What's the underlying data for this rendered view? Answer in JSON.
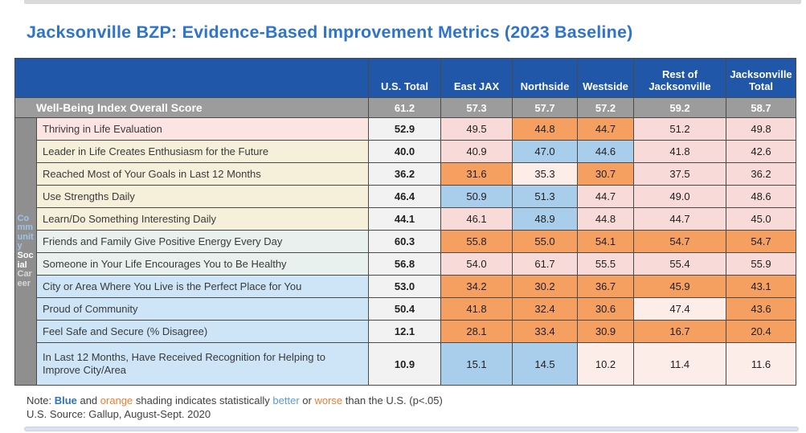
{
  "page": {
    "title": "Jacksonville BZP: Evidence-Based Improvement Metrics (2023 Baseline)"
  },
  "colors": {
    "title_color": "#2E74C8",
    "header_bg": "#2057A8",
    "overall_bg": "#9C9C9C",
    "cell_orange": "#F5A061",
    "cell_blue": "#A9CEEB",
    "cell_pink": "#F8DBD8",
    "cell_lightpink": "#FCEDE9",
    "us_col_bg": "#F2F2F2",
    "label_pink": "#FBE4E2",
    "label_cream": "#F6F0DA",
    "label_teal": "#E8F1ED",
    "label_blue": "#CDE5F6",
    "strip_bg": "#8F8F8F",
    "strip_community": "#9DC3E6",
    "strip_social": "#FFFFFF",
    "strip_career": "#D6D6D6",
    "note_blue": "#2E75B6",
    "note_lightblue": "#5B9BD5",
    "note_orange": "#ED7D31"
  },
  "table": {
    "columns": [
      "U.S. Total",
      "East JAX",
      "Northside",
      "Westside",
      "Rest of Jacksonville",
      "Jacksonville Total"
    ],
    "overall_row": {
      "label": "Well-Being Index Overall Score",
      "values": [
        "61.2",
        "57.3",
        "57.7",
        "57.2",
        "59.2",
        "58.7"
      ]
    },
    "side_groups": [
      "Community",
      "Social",
      "Career"
    ],
    "rows": [
      {
        "label": "Thriving in Life Evaluation",
        "label_style": "pink",
        "values": [
          "52.9",
          "49.5",
          "44.8",
          "44.7",
          "51.2",
          "49.8"
        ],
        "cell_styles": [
          "us",
          "pink",
          "orange",
          "orange",
          "pink",
          "pink"
        ]
      },
      {
        "label": "Leader in Life Creates Enthusiasm for the Future",
        "label_style": "cream",
        "values": [
          "40.0",
          "40.9",
          "47.0",
          "44.6",
          "41.8",
          "42.6"
        ],
        "cell_styles": [
          "us",
          "pink",
          "blue",
          "blue",
          "pink",
          "pink"
        ]
      },
      {
        "label": "Reached Most of Your Goals in Last 12 Months",
        "label_style": "cream",
        "values": [
          "36.2",
          "31.6",
          "35.3",
          "30.7",
          "37.5",
          "36.2"
        ],
        "cell_styles": [
          "us",
          "orange",
          "lightpink",
          "orange",
          "pink",
          "pink"
        ]
      },
      {
        "label": "Use Strengths Daily",
        "label_style": "cream",
        "values": [
          "46.4",
          "50.9",
          "51.3",
          "44.7",
          "49.0",
          "48.6"
        ],
        "cell_styles": [
          "us",
          "blue",
          "blue",
          "pink",
          "pink",
          "pink"
        ]
      },
      {
        "label": "Learn/Do Something Interesting Daily",
        "label_style": "cream",
        "values": [
          "44.1",
          "46.1",
          "48.9",
          "44.8",
          "44.7",
          "45.0"
        ],
        "cell_styles": [
          "us",
          "pink",
          "blue",
          "pink",
          "pink",
          "pink"
        ]
      },
      {
        "label": "Friends and Family Give Positive Energy Every Day",
        "label_style": "teal",
        "values": [
          "60.3",
          "55.8",
          "55.0",
          "54.1",
          "54.7",
          "54.7"
        ],
        "cell_styles": [
          "us",
          "orange",
          "orange",
          "orange",
          "orange",
          "orange"
        ]
      },
      {
        "label": "Someone in Your Life Encourages You to Be Healthy",
        "label_style": "teal",
        "values": [
          "56.8",
          "54.0",
          "61.7",
          "55.5",
          "55.4",
          "55.9"
        ],
        "cell_styles": [
          "us",
          "pink",
          "pink",
          "pink",
          "pink",
          "pink"
        ]
      },
      {
        "label": "City or Area Where You Live is the Perfect Place for You",
        "label_style": "blue",
        "values": [
          "53.0",
          "34.2",
          "30.2",
          "36.7",
          "45.9",
          "43.1"
        ],
        "cell_styles": [
          "us",
          "orange",
          "orange",
          "orange",
          "orange",
          "orange"
        ]
      },
      {
        "label": "Proud of Community",
        "label_style": "blue",
        "values": [
          "50.4",
          "41.8",
          "32.4",
          "30.6",
          "47.4",
          "43.6"
        ],
        "cell_styles": [
          "us",
          "orange",
          "orange",
          "orange",
          "lightpink",
          "orange"
        ]
      },
      {
        "label": "Feel Safe and Secure (% Disagree)",
        "label_style": "blue",
        "values": [
          "12.1",
          "28.1",
          "33.4",
          "30.9",
          "16.7",
          "20.4"
        ],
        "cell_styles": [
          "us",
          "orange",
          "orange",
          "orange",
          "orange",
          "orange"
        ]
      },
      {
        "label": "In Last 12 Months, Have Received Recognition for Helping to Improve City/Area",
        "label_style": "blue",
        "values": [
          "10.9",
          "15.1",
          "14.5",
          "10.2",
          "11.4",
          "11.6"
        ],
        "cell_styles": [
          "us",
          "blue",
          "blue",
          "lightpink",
          "lightpink",
          "lightpink"
        ]
      }
    ]
  },
  "notes": {
    "legend_segments": [
      {
        "text": "Note: "
      },
      {
        "text": "Blue",
        "style": "blue-bold"
      },
      {
        "text": " and "
      },
      {
        "text": "orange",
        "style": "orange"
      },
      {
        "text": " shading indicates statistically "
      },
      {
        "text": "better",
        "style": "blue"
      },
      {
        "text": " or "
      },
      {
        "text": "worse",
        "style": "orange"
      },
      {
        "text": " than the U.S. (p<.05)"
      }
    ],
    "source": "U.S. Source: Gallup, August-Sept. 2020"
  },
  "chart_data": {
    "type": "table",
    "title": "Jacksonville BZP: Evidence-Based Improvement Metrics (2023 Baseline)",
    "columns": [
      "U.S. Total",
      "East JAX",
      "Northside",
      "Westside",
      "Rest of Jacksonville",
      "Jacksonville Total"
    ],
    "rows": [
      {
        "label": "Well-Being Index Overall Score",
        "values": [
          61.2,
          57.3,
          57.7,
          57.2,
          59.2,
          58.7
        ]
      },
      {
        "label": "Thriving in Life Evaluation",
        "values": [
          52.9,
          49.5,
          44.8,
          44.7,
          51.2,
          49.8
        ]
      },
      {
        "label": "Leader in Life Creates Enthusiasm for the Future",
        "values": [
          40.0,
          40.9,
          47.0,
          44.6,
          41.8,
          42.6
        ]
      },
      {
        "label": "Reached Most of Your Goals in Last 12 Months",
        "values": [
          36.2,
          31.6,
          35.3,
          30.7,
          37.5,
          36.2
        ]
      },
      {
        "label": "Use Strengths Daily",
        "values": [
          46.4,
          50.9,
          51.3,
          44.7,
          49.0,
          48.6
        ]
      },
      {
        "label": "Learn/Do Something Interesting Daily",
        "values": [
          44.1,
          46.1,
          48.9,
          44.8,
          44.7,
          45.0
        ]
      },
      {
        "label": "Friends and Family Give Positive Energy Every Day",
        "values": [
          60.3,
          55.8,
          55.0,
          54.1,
          54.7,
          54.7
        ]
      },
      {
        "label": "Someone in Your Life Encourages You to Be Healthy",
        "values": [
          56.8,
          54.0,
          61.7,
          55.5,
          55.4,
          55.9
        ]
      },
      {
        "label": "City or Area Where You Live is the Perfect Place for You",
        "values": [
          53.0,
          34.2,
          30.2,
          36.7,
          45.9,
          43.1
        ]
      },
      {
        "label": "Proud of Community",
        "values": [
          50.4,
          41.8,
          32.4,
          30.6,
          47.4,
          43.6
        ]
      },
      {
        "label": "Feel Safe and Secure (% Disagree)",
        "values": [
          12.1,
          28.1,
          33.4,
          30.9,
          16.7,
          20.4
        ]
      },
      {
        "label": "In Last 12 Months, Have Received Recognition for Helping to Improve City/Area",
        "values": [
          10.9,
          15.1,
          14.5,
          10.2,
          11.4,
          11.6
        ]
      }
    ],
    "legend": "Blue shading = statistically better than U.S.; orange shading = statistically worse than U.S. (p<.05)"
  }
}
